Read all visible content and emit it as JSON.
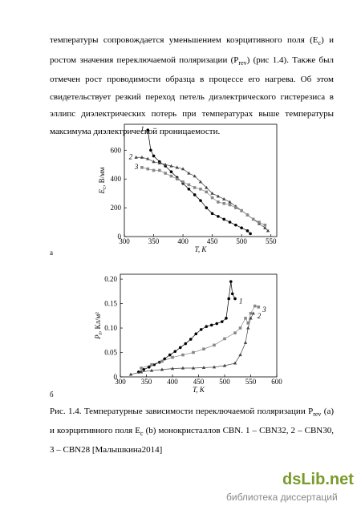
{
  "paragraph": [
    "температуры сопровождается уменьшением коэрцитивного поля (E",
    "c",
    ") и ростом значения переключаемой поляризации (P",
    "rev",
    ") (рис 1.4). Также был отмечен рост проводимости образца в процессе его нагрева. Об этом свидетельствует резкий переход петель диэлектрического гистерезиса в эллипс диэлектрических потерь при температурах выше температуры максимума диэлектрической проницаемости."
  ],
  "chart_data": [
    {
      "type": "line",
      "panel_label": "а",
      "xlabel": "T, K",
      "ylabel": [
        "E",
        "c",
        ", В/мм"
      ],
      "xlim": [
        300,
        560
      ],
      "ylim": [
        0,
        780
      ],
      "xticks": [
        300,
        350,
        400,
        450,
        500,
        550
      ],
      "yticks": [
        0,
        200,
        400,
        600
      ],
      "label_at": "start",
      "series": [
        {
          "name": "1",
          "color": "#000000",
          "marker": "circle",
          "x": [
            340,
            345,
            350,
            360,
            370,
            380,
            390,
            400,
            410,
            420,
            430,
            440,
            450,
            460,
            470,
            480,
            490,
            500,
            510,
            515
          ],
          "values": [
            740,
            600,
            560,
            520,
            490,
            450,
            410,
            370,
            330,
            290,
            250,
            200,
            160,
            140,
            120,
            100,
            80,
            60,
            40,
            20
          ]
        },
        {
          "name": "2",
          "color": "#444444",
          "marker": "triangle",
          "x": [
            320,
            330,
            340,
            350,
            360,
            370,
            380,
            390,
            400,
            410,
            420,
            430,
            440,
            450,
            460,
            470,
            480,
            490,
            500,
            510,
            520,
            530,
            540,
            545
          ],
          "values": [
            550,
            550,
            540,
            520,
            510,
            500,
            490,
            480,
            470,
            440,
            420,
            380,
            340,
            300,
            280,
            260,
            240,
            210,
            180,
            150,
            120,
            90,
            60,
            40
          ]
        },
        {
          "name": "3",
          "color": "#888888",
          "marker": "square",
          "x": [
            330,
            340,
            350,
            360,
            370,
            380,
            390,
            400,
            410,
            420,
            430,
            440,
            450,
            460,
            470,
            480,
            490,
            500,
            510,
            520,
            530,
            540
          ],
          "values": [
            480,
            470,
            460,
            460,
            440,
            420,
            400,
            380,
            360,
            340,
            330,
            310,
            270,
            240,
            230,
            220,
            200,
            180,
            150,
            120,
            100,
            80
          ]
        }
      ]
    },
    {
      "type": "line",
      "panel_label": "б",
      "xlabel": "T, K",
      "ylabel": [
        "P",
        "r",
        ", Кл/м²"
      ],
      "xlim": [
        300,
        600
      ],
      "ylim": [
        0,
        0.21
      ],
      "xticks": [
        300,
        350,
        400,
        450,
        500,
        550,
        600
      ],
      "yticks": [
        0,
        0.05,
        {
          "value": 0.1,
          "label": "0.10"
        },
        0.15,
        {
          "value": 0.2,
          "label": "0.20"
        }
      ],
      "label_at": "end",
      "series": [
        {
          "name": "1",
          "color": "#000000",
          "marker": "circle",
          "x": [
            335,
            345,
            355,
            365,
            375,
            385,
            395,
            405,
            415,
            425,
            435,
            445,
            455,
            465,
            475,
            485,
            495,
            503,
            508,
            512,
            515,
            520
          ],
          "values": [
            0.01,
            0.015,
            0.02,
            0.025,
            0.03,
            0.037,
            0.045,
            0.052,
            0.06,
            0.068,
            0.077,
            0.088,
            0.097,
            0.103,
            0.106,
            0.109,
            0.113,
            0.12,
            0.16,
            0.195,
            0.17,
            0.16
          ]
        },
        {
          "name": "2",
          "color": "#444444",
          "marker": "triangle",
          "x": [
            320,
            340,
            360,
            380,
            400,
            420,
            440,
            460,
            480,
            500,
            520,
            530,
            540,
            545,
            550,
            555
          ],
          "values": [
            0.005,
            0.01,
            0.013,
            0.015,
            0.017,
            0.018,
            0.018,
            0.019,
            0.02,
            0.023,
            0.028,
            0.045,
            0.07,
            0.1,
            0.12,
            0.13
          ]
        },
        {
          "name": "3",
          "color": "#888888",
          "marker": "square",
          "x": [
            340,
            360,
            380,
            400,
            420,
            440,
            460,
            480,
            500,
            520,
            530,
            540,
            545,
            550,
            558,
            565
          ],
          "values": [
            0.018,
            0.025,
            0.032,
            0.04,
            0.045,
            0.05,
            0.057,
            0.065,
            0.078,
            0.09,
            0.1,
            0.12,
            0.11,
            0.13,
            0.145,
            0.143
          ]
        }
      ]
    }
  ],
  "caption": [
    "Рис. 1.4. Температурные зависимости переключаемой поляризации P",
    "rev",
    " (a) и коэрцитивного поля E",
    "c",
    " (b) монокристаллов CBN. 1 – CBN32, 2 – CBN30, 3 – CBN28 [Малышкина2014]"
  ],
  "watermark": {
    "brand": "dsLib.net",
    "subtitle": "библиотека диссертаций"
  }
}
